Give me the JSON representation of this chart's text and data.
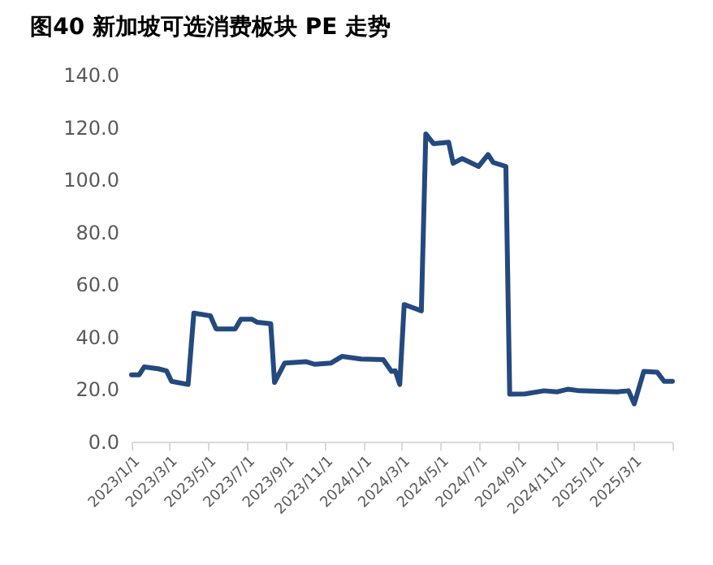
{
  "chart_data": {
    "type": "line",
    "title": "图40 新加坡可选消费板块 PE 走势",
    "x": [
      "2023-01-01",
      "2023-01-13",
      "2023-01-21",
      "2023-02-12",
      "2023-02-25",
      "2023-03-05",
      "2023-03-31",
      "2023-04-09",
      "2023-05-05",
      "2023-05-14",
      "2023-06-13",
      "2023-06-22",
      "2023-07-09",
      "2023-07-18",
      "2023-08-08",
      "2023-08-14",
      "2023-08-30",
      "2023-10-03",
      "2023-10-16",
      "2023-11-11",
      "2023-11-28",
      "2023-12-28",
      "2024-02-01",
      "2024-02-14",
      "2024-02-20",
      "2024-02-27",
      "2024-03-05",
      "2024-04-01",
      "2024-04-08",
      "2024-04-20",
      "2024-05-14",
      "2024-05-21",
      "2024-06-04",
      "2024-06-30",
      "2024-07-15",
      "2024-07-23",
      "2024-08-12",
      "2024-08-18",
      "2024-09-11",
      "2024-10-11",
      "2024-11-01",
      "2024-11-18",
      "2024-12-06",
      "2025-02-04",
      "2025-02-21",
      "2025-03-02",
      "2025-03-17",
      "2025-04-07",
      "2025-04-18",
      "2025-05-01"
    ],
    "series": [
      {
        "color": "#24497f",
        "values": [
          25.5,
          25.5,
          28.5,
          27.8,
          27,
          23,
          21.8,
          49,
          48,
          43,
          43,
          46.7,
          46.7,
          45.5,
          45,
          22.6,
          30,
          30.5,
          29.5,
          30,
          32.5,
          31.5,
          31.3,
          26.8,
          27,
          21.8,
          52.3,
          49.9,
          117.4,
          113.7,
          114.2,
          106.2,
          108,
          105,
          109.5,
          106.5,
          105,
          18.1,
          18.2,
          19.4,
          19,
          20,
          19.4,
          19,
          19.4,
          14.4,
          26.8,
          26.5,
          23,
          23
        ]
      }
    ],
    "xlim": [
      "2023-01-01",
      "2025-05-01"
    ],
    "xticks": [
      {
        "value": "2023-01-01",
        "label": "2023/1/1"
      },
      {
        "value": "2023-03-01",
        "label": "2023/3/1"
      },
      {
        "value": "2023-05-01",
        "label": "2023/5/1"
      },
      {
        "value": "2023-07-01",
        "label": "2023/7/1"
      },
      {
        "value": "2023-09-01",
        "label": "2023/9/1"
      },
      {
        "value": "2023-11-01",
        "label": "2023/11/1"
      },
      {
        "value": "2024-01-01",
        "label": "2024/1/1"
      },
      {
        "value": "2024-03-01",
        "label": "2024/3/1"
      },
      {
        "value": "2024-05-01",
        "label": "2024/5/1"
      },
      {
        "value": "2024-07-01",
        "label": "2024/7/1"
      },
      {
        "value": "2024-09-01",
        "label": "2024/9/1"
      },
      {
        "value": "2024-11-01",
        "label": "2024/11/1"
      },
      {
        "value": "2025-01-01",
        "label": "2025/1/1"
      },
      {
        "value": "2025-03-01",
        "label": "2025/3/1"
      },
      {
        "value": "2025-05-01",
        "label": null
      }
    ],
    "ylim": [
      0,
      140
    ],
    "yticks": [
      {
        "value": 0,
        "label": "0.0"
      },
      {
        "value": 20,
        "label": "20.0"
      },
      {
        "value": 40,
        "label": "40.0"
      },
      {
        "value": 60,
        "label": "60.0"
      },
      {
        "value": 80,
        "label": "80.0"
      },
      {
        "value": 100,
        "label": "100.0"
      },
      {
        "value": 120,
        "label": "120.0"
      },
      {
        "value": 140,
        "label": "140.0"
      }
    ],
    "grid": false,
    "legend": false,
    "marker": "none",
    "line_style": "solid"
  }
}
